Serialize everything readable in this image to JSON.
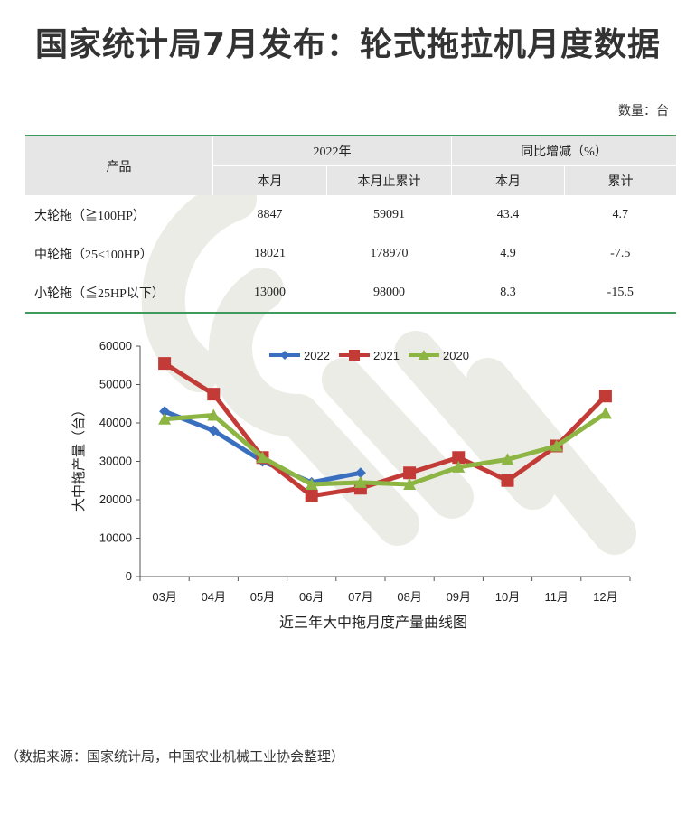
{
  "page": {
    "title": "国家统计局7月发布：轮式拖拉机月度数据",
    "unit_note": "数量：台",
    "source": "（数据来源：国家统计局，中国农业机械工业协会整理）"
  },
  "table": {
    "col_product": "产品",
    "group_2022": "2022年",
    "group_yoy": "同比增减（%）",
    "sub_month": "本月",
    "sub_cumulative": "本月止累计",
    "sub_month2": "本月",
    "sub_total": "累计",
    "rows": [
      {
        "name": "大轮拖（≧100HP）",
        "month": "8847",
        "cumulative": "59091",
        "yoy_month": "43.4",
        "yoy_total": "4.7"
      },
      {
        "name": "中轮拖（25<100HP）",
        "month": "18021",
        "cumulative": "178970",
        "yoy_month": "4.9",
        "yoy_total": "-7.5"
      },
      {
        "name": "小轮拖（≦25HP以下）",
        "month": "13000",
        "cumulative": "98000",
        "yoy_month": "8.3",
        "yoy_total": "-15.5"
      }
    ]
  },
  "colors": {
    "series_2022": "#3a6fbf",
    "series_2021": "#c23b37",
    "series_2020": "#8db543",
    "table_rule": "#3f9a5e",
    "header_bg": "#e6e6e6"
  },
  "chart_data": {
    "type": "line",
    "title": "近三年大中拖月度产量曲线图",
    "xlabel": "",
    "ylabel": "大中拖产量（台）",
    "categories": [
      "03月",
      "04月",
      "05月",
      "06月",
      "07月",
      "08月",
      "09月",
      "10月",
      "11月",
      "12月"
    ],
    "ylim": [
      0,
      60000
    ],
    "yticks": [
      0,
      10000,
      20000,
      30000,
      40000,
      50000,
      60000
    ],
    "legend_position": "top",
    "series": [
      {
        "name": "2022",
        "marker": "diamond",
        "values": [
          43000,
          38000,
          30000,
          24500,
          27000,
          null,
          null,
          null,
          null,
          null
        ]
      },
      {
        "name": "2021",
        "marker": "square",
        "values": [
          55500,
          47500,
          31000,
          21000,
          23000,
          27000,
          31000,
          25000,
          34000,
          47000
        ]
      },
      {
        "name": "2020",
        "marker": "triangle",
        "values": [
          41000,
          42000,
          31000,
          24000,
          24500,
          24000,
          28500,
          30500,
          34000,
          42500
        ]
      }
    ]
  }
}
